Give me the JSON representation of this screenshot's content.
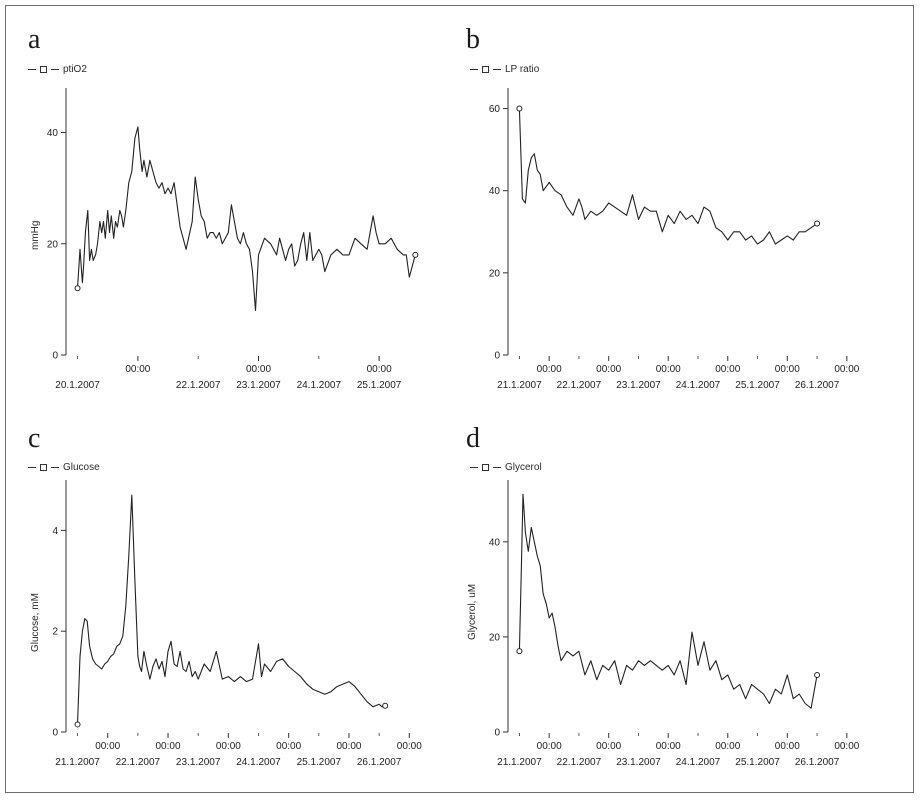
{
  "chart_data": [
    {
      "panel": "a",
      "type": "line",
      "legend": "ptiO2",
      "ylabel": "mmHg",
      "ylim": [
        0,
        48
      ],
      "yticks": [
        0,
        20,
        40
      ],
      "xlim": [
        0,
        6
      ],
      "x_major_ticks": [
        {
          "x": 1.0,
          "label": "00:00"
        },
        {
          "x": 3.0,
          "label": "00:00"
        },
        {
          "x": 5.0,
          "label": "00:00"
        }
      ],
      "x_date_labels": [
        {
          "x": 0.0,
          "label": "20.1.2007"
        },
        {
          "x": 2.0,
          "label": "22.1.2007"
        },
        {
          "x": 3.0,
          "label": "23.1.2007"
        },
        {
          "x": 4.0,
          "label": "24.1.2007"
        },
        {
          "x": 5.0,
          "label": "25.1.2007"
        }
      ],
      "x": [
        0.0,
        0.04,
        0.08,
        0.1,
        0.13,
        0.17,
        0.2,
        0.23,
        0.26,
        0.3,
        0.33,
        0.37,
        0.4,
        0.43,
        0.46,
        0.5,
        0.53,
        0.56,
        0.6,
        0.63,
        0.66,
        0.7,
        0.73,
        0.76,
        0.8,
        0.85,
        0.9,
        0.95,
        1.0,
        1.03,
        1.07,
        1.1,
        1.15,
        1.2,
        1.25,
        1.3,
        1.35,
        1.4,
        1.45,
        1.5,
        1.55,
        1.6,
        1.7,
        1.8,
        1.9,
        1.95,
        2.0,
        2.05,
        2.1,
        2.15,
        2.2,
        2.25,
        2.3,
        2.35,
        2.4,
        2.45,
        2.5,
        2.55,
        2.6,
        2.65,
        2.7,
        2.75,
        2.8,
        2.85,
        2.9,
        2.95,
        3.0,
        3.1,
        3.2,
        3.3,
        3.35,
        3.4,
        3.45,
        3.5,
        3.55,
        3.6,
        3.65,
        3.7,
        3.75,
        3.8,
        3.85,
        3.9,
        3.95,
        4.0,
        4.05,
        4.1,
        4.2,
        4.3,
        4.4,
        4.5,
        4.6,
        4.7,
        4.8,
        4.9,
        4.95,
        5.0,
        5.1,
        5.2,
        5.3,
        5.4,
        5.45,
        5.5,
        5.6
      ],
      "y": [
        12,
        19,
        13,
        16,
        22,
        26,
        17,
        19,
        17,
        18,
        20,
        24,
        22,
        24,
        21,
        26,
        22,
        25,
        21,
        24,
        23,
        26,
        25,
        23,
        26,
        31,
        33,
        39,
        41,
        37,
        33,
        35,
        32,
        35,
        33,
        31,
        30,
        31,
        29,
        30,
        29,
        31,
        23,
        19,
        24,
        32,
        28,
        25,
        24,
        21,
        22,
        22,
        21,
        22,
        20,
        21,
        22,
        27,
        24,
        21,
        20,
        22,
        20,
        19,
        15,
        8,
        18,
        21,
        20,
        18,
        21,
        19,
        17,
        19,
        20,
        16,
        17,
        20,
        22,
        17,
        22,
        17,
        18,
        19,
        18,
        15,
        18,
        19,
        18,
        18,
        21,
        20,
        19,
        25,
        22,
        20,
        20,
        21,
        19,
        18,
        18,
        14,
        18
      ]
    },
    {
      "panel": "b",
      "type": "line",
      "legend": "LP ratio",
      "ylabel": "",
      "ylim": [
        0,
        65
      ],
      "yticks": [
        0,
        20,
        40,
        60
      ],
      "xlim": [
        0,
        6
      ],
      "x_major_ticks": [
        {
          "x": 0.5,
          "label": "00:00"
        },
        {
          "x": 1.5,
          "label": "00:00"
        },
        {
          "x": 2.5,
          "label": "00:00"
        },
        {
          "x": 3.5,
          "label": "00:00"
        },
        {
          "x": 4.5,
          "label": "00:00"
        },
        {
          "x": 5.5,
          "label": "00:00"
        }
      ],
      "x_date_labels": [
        {
          "x": 0.0,
          "label": "21.1.2007"
        },
        {
          "x": 1.0,
          "label": "22.1.2007"
        },
        {
          "x": 2.0,
          "label": "23.1.2007"
        },
        {
          "x": 3.0,
          "label": "24.1.2007"
        },
        {
          "x": 4.0,
          "label": "25.1.2007"
        },
        {
          "x": 5.0,
          "label": "26.1.2007"
        }
      ],
      "x": [
        0.0,
        0.05,
        0.1,
        0.15,
        0.2,
        0.25,
        0.3,
        0.35,
        0.4,
        0.5,
        0.6,
        0.7,
        0.8,
        0.9,
        1.0,
        1.05,
        1.1,
        1.2,
        1.3,
        1.4,
        1.5,
        1.6,
        1.7,
        1.8,
        1.9,
        2.0,
        2.1,
        2.2,
        2.3,
        2.4,
        2.5,
        2.6,
        2.7,
        2.8,
        2.9,
        3.0,
        3.1,
        3.2,
        3.3,
        3.4,
        3.5,
        3.6,
        3.7,
        3.8,
        3.9,
        4.0,
        4.1,
        4.2,
        4.3,
        4.4,
        4.5,
        4.6,
        4.7,
        4.8,
        4.9,
        5.0
      ],
      "y": [
        60,
        38,
        37,
        45,
        48,
        49,
        45,
        44,
        40,
        42,
        40,
        39,
        36,
        34,
        38,
        36,
        33,
        35,
        34,
        35,
        37,
        36,
        35,
        34,
        39,
        33,
        36,
        35,
        35,
        30,
        34,
        32,
        35,
        33,
        34,
        32,
        36,
        35,
        31,
        30,
        28,
        30,
        30,
        28,
        29,
        27,
        28,
        30,
        27,
        28,
        29,
        28,
        30,
        30,
        31,
        32
      ]
    },
    {
      "panel": "c",
      "type": "line",
      "legend": "Glucose",
      "ylabel": "Glucose, mM",
      "ylim": [
        0,
        5
      ],
      "yticks": [
        0,
        2,
        4
      ],
      "xlim": [
        0,
        6
      ],
      "x_major_ticks": [
        {
          "x": 0.5,
          "label": "00:00"
        },
        {
          "x": 1.5,
          "label": "00:00"
        },
        {
          "x": 2.5,
          "label": "00:00"
        },
        {
          "x": 3.5,
          "label": "00:00"
        },
        {
          "x": 4.5,
          "label": "00:00"
        },
        {
          "x": 5.5,
          "label": "00:00"
        }
      ],
      "x_date_labels": [
        {
          "x": 0.0,
          "label": "21.1.2007"
        },
        {
          "x": 1.0,
          "label": "22.1.2007"
        },
        {
          "x": 2.0,
          "label": "23.1.2007"
        },
        {
          "x": 3.0,
          "label": "24.1.2007"
        },
        {
          "x": 4.0,
          "label": "25.1.2007"
        },
        {
          "x": 5.0,
          "label": "26.1.2007"
        }
      ],
      "x": [
        0.0,
        0.04,
        0.08,
        0.12,
        0.16,
        0.2,
        0.25,
        0.3,
        0.35,
        0.4,
        0.45,
        0.5,
        0.55,
        0.6,
        0.65,
        0.7,
        0.75,
        0.8,
        0.85,
        0.9,
        0.95,
        1.0,
        1.03,
        1.06,
        1.1,
        1.15,
        1.2,
        1.25,
        1.3,
        1.35,
        1.4,
        1.45,
        1.5,
        1.55,
        1.6,
        1.65,
        1.7,
        1.75,
        1.8,
        1.85,
        1.9,
        1.95,
        2.0,
        2.1,
        2.2,
        2.3,
        2.4,
        2.5,
        2.6,
        2.7,
        2.8,
        2.9,
        3.0,
        3.05,
        3.1,
        3.2,
        3.3,
        3.4,
        3.5,
        3.6,
        3.7,
        3.8,
        3.9,
        4.0,
        4.1,
        4.2,
        4.3,
        4.4,
        4.5,
        4.6,
        4.7,
        4.8,
        4.9,
        5.0,
        5.05,
        5.1
      ],
      "y": [
        0.15,
        1.5,
        2.0,
        2.25,
        2.2,
        1.7,
        1.45,
        1.35,
        1.3,
        1.25,
        1.35,
        1.4,
        1.5,
        1.55,
        1.7,
        1.75,
        1.9,
        2.5,
        3.5,
        4.7,
        3.0,
        1.5,
        1.3,
        1.2,
        1.6,
        1.3,
        1.05,
        1.3,
        1.45,
        1.25,
        1.4,
        1.1,
        1.6,
        1.8,
        1.35,
        1.3,
        1.6,
        1.25,
        1.2,
        1.4,
        1.1,
        1.2,
        1.05,
        1.35,
        1.2,
        1.6,
        1.05,
        1.1,
        1.0,
        1.1,
        1.0,
        1.05,
        1.75,
        1.1,
        1.35,
        1.2,
        1.4,
        1.45,
        1.3,
        1.2,
        1.1,
        0.95,
        0.85,
        0.8,
        0.75,
        0.8,
        0.9,
        0.95,
        1.0,
        0.9,
        0.75,
        0.6,
        0.5,
        0.55,
        0.5,
        0.52
      ]
    },
    {
      "panel": "d",
      "type": "line",
      "legend": "Glycerol",
      "ylabel": "Glycerol, uM",
      "ylim": [
        0,
        53
      ],
      "yticks": [
        0,
        20,
        40
      ],
      "xlim": [
        0,
        6
      ],
      "x_major_ticks": [
        {
          "x": 0.5,
          "label": "00:00"
        },
        {
          "x": 1.5,
          "label": "00:00"
        },
        {
          "x": 2.5,
          "label": "00:00"
        },
        {
          "x": 3.5,
          "label": "00:00"
        },
        {
          "x": 4.5,
          "label": "00:00"
        },
        {
          "x": 5.5,
          "label": "00:00"
        }
      ],
      "x_date_labels": [
        {
          "x": 0.0,
          "label": "21.1.2007"
        },
        {
          "x": 1.0,
          "label": "22.1.2007"
        },
        {
          "x": 2.0,
          "label": "23.1.2007"
        },
        {
          "x": 3.0,
          "label": "24.1.2007"
        },
        {
          "x": 4.0,
          "label": "25.1.2007"
        },
        {
          "x": 5.0,
          "label": "26.1.2007"
        }
      ],
      "x": [
        0.0,
        0.03,
        0.06,
        0.1,
        0.15,
        0.2,
        0.25,
        0.3,
        0.35,
        0.4,
        0.45,
        0.5,
        0.55,
        0.6,
        0.65,
        0.7,
        0.8,
        0.9,
        1.0,
        1.1,
        1.2,
        1.3,
        1.4,
        1.5,
        1.6,
        1.7,
        1.8,
        1.9,
        2.0,
        2.1,
        2.2,
        2.3,
        2.4,
        2.5,
        2.6,
        2.7,
        2.8,
        2.9,
        3.0,
        3.1,
        3.2,
        3.3,
        3.4,
        3.5,
        3.6,
        3.7,
        3.8,
        3.9,
        4.0,
        4.1,
        4.2,
        4.3,
        4.4,
        4.5,
        4.6,
        4.7,
        4.8,
        4.9,
        5.0
      ],
      "y": [
        17,
        33,
        50,
        42,
        38,
        43,
        40,
        37,
        35,
        29,
        27,
        24,
        25,
        22,
        18,
        15,
        17,
        16,
        17,
        12,
        15,
        11,
        14,
        13,
        15,
        10,
        14,
        13,
        15,
        14,
        15,
        14,
        13,
        14,
        12,
        15,
        10,
        21,
        14,
        19,
        13,
        15,
        11,
        12,
        9,
        10,
        7,
        10,
        9,
        8,
        6,
        9,
        8,
        12,
        7,
        8,
        6,
        5,
        12
      ]
    }
  ]
}
